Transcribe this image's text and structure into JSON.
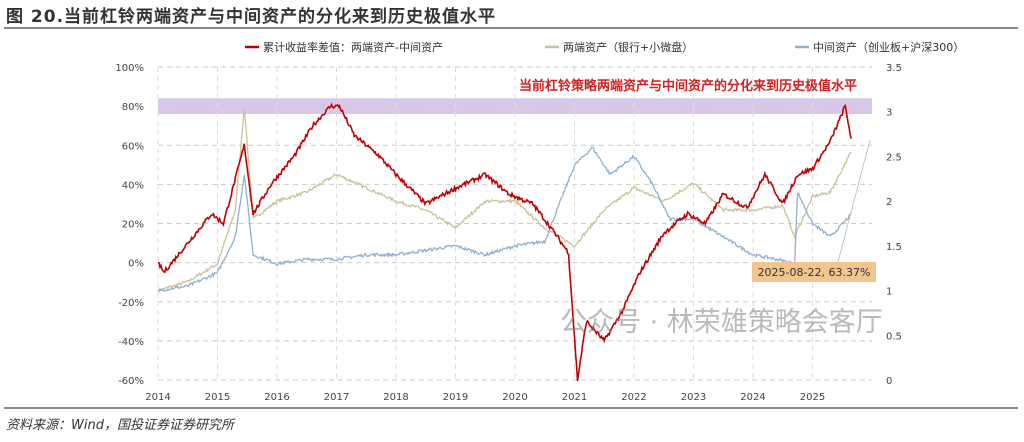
{
  "title": "图 20.当前杠铃两端资产与中间资产的分化来到历史极值水平",
  "source": "资料来源：Wind，国投证券证券研究所",
  "watermark": "公众号 · 林荣雄策略会客厅",
  "chart_data": {
    "type": "line",
    "annotation": "当前杠铃策略两端资产与中间资产的分化来到历史极值水平",
    "callout": "2025-08-22, 63.37%",
    "highlight_band": {
      "axis": "left",
      "range": [
        76,
        84
      ],
      "color": "#d9c6ea"
    },
    "x_ticks": [
      "2014",
      "2015",
      "2016",
      "2017",
      "2018",
      "2019",
      "2020",
      "2021",
      "2022",
      "2023",
      "2024",
      "2025"
    ],
    "xlim": [
      2014,
      2026
    ],
    "left_axis": {
      "ticks": [
        "100%",
        "80%",
        "60%",
        "40%",
        "20%",
        "0%",
        "-20%",
        "-40%",
        "-60%"
      ],
      "ylim": [
        -60,
        100
      ]
    },
    "right_axis": {
      "ticks": [
        "3.5",
        "3",
        "2.5",
        "2",
        "1.5",
        "1",
        "0.5",
        "0"
      ],
      "ylim": [
        0,
        3.5
      ]
    },
    "grid": true,
    "legend_position": "top",
    "series": [
      {
        "name": "累计收益率差值：两端资产-中间资产",
        "axis": "left",
        "color": "#c00000",
        "x": [
          2014,
          2014.1,
          2014.5,
          2014.9,
          2015.1,
          2015.45,
          2015.6,
          2015.9,
          2016.3,
          2016.6,
          2016.9,
          2017.05,
          2017.3,
          2017.7,
          2018,
          2018.5,
          2019,
          2019.5,
          2019.9,
          2020.3,
          2020.6,
          2020.9,
          2021.05,
          2021.2,
          2021.5,
          2021.8,
          2022.1,
          2022.5,
          2022.9,
          2023.2,
          2023.5,
          2023.9,
          2024.2,
          2024.5,
          2024.75,
          2025,
          2025.3,
          2025.55,
          2025.65
        ],
        "y": [
          0,
          -5,
          10,
          25,
          20,
          60,
          25,
          40,
          55,
          70,
          80,
          80,
          65,
          55,
          45,
          30,
          38,
          45,
          35,
          30,
          18,
          5,
          -60,
          -30,
          -40,
          -25,
          -5,
          15,
          25,
          20,
          35,
          28,
          45,
          30,
          45,
          48,
          62,
          80,
          63.37
        ]
      },
      {
        "name": "两端资产（银行+小微盘）",
        "axis": "right",
        "color": "#c9c39a",
        "x": [
          2014,
          2014.5,
          2015,
          2015.3,
          2015.45,
          2015.6,
          2016,
          2016.5,
          2017,
          2017.5,
          2018,
          2018.5,
          2019,
          2019.5,
          2020,
          2020.5,
          2021,
          2021.5,
          2022,
          2022.5,
          2023,
          2023.5,
          2024,
          2024.5,
          2024.7,
          2025,
          2025.3,
          2025.65
        ],
        "y": [
          1.0,
          1.1,
          1.3,
          1.9,
          3.05,
          1.8,
          2.0,
          2.1,
          2.3,
          2.15,
          2.0,
          1.9,
          1.7,
          2.0,
          2.0,
          1.7,
          1.5,
          1.9,
          2.15,
          2.0,
          2.2,
          1.9,
          1.9,
          1.95,
          1.6,
          2.05,
          2.1,
          2.55
        ]
      },
      {
        "name": "中间资产（创业板+沪深300）",
        "axis": "right",
        "color": "#8fb0d4",
        "x": [
          2014,
          2014.5,
          2015,
          2015.3,
          2015.45,
          2015.6,
          2016,
          2016.5,
          2017,
          2017.5,
          2018,
          2018.5,
          2019,
          2019.5,
          2020,
          2020.5,
          2021,
          2021.3,
          2021.6,
          2022,
          2022.3,
          2022.6,
          2023,
          2023.5,
          2024,
          2024.4,
          2024.7,
          2024.75,
          2025,
          2025.3,
          2025.65
        ],
        "y": [
          1.0,
          1.05,
          1.2,
          1.6,
          2.3,
          1.4,
          1.3,
          1.35,
          1.35,
          1.4,
          1.4,
          1.45,
          1.5,
          1.4,
          1.5,
          1.55,
          2.4,
          2.6,
          2.3,
          2.5,
          2.2,
          1.8,
          1.8,
          1.6,
          1.4,
          1.35,
          1.3,
          2.1,
          1.75,
          1.6,
          1.85
        ]
      }
    ]
  }
}
